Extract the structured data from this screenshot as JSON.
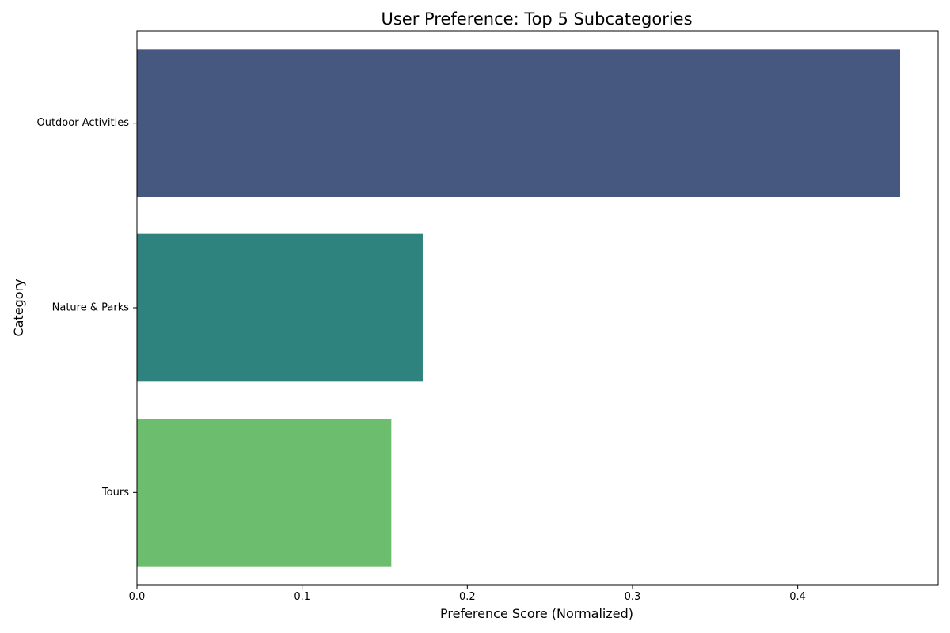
{
  "chart_data": {
    "type": "bar",
    "orientation": "horizontal",
    "title": "User Preference: Top 5 Subcategories",
    "xlabel": "Preference Score (Normalized)",
    "ylabel": "Category",
    "categories": [
      "Outdoor Activities",
      "Nature & Parks",
      "Tours"
    ],
    "values": [
      0.462,
      0.173,
      0.154
    ],
    "colors": [
      "#46587f",
      "#2e837e",
      "#6cbd6d"
    ],
    "xlim": [
      0,
      0.485
    ],
    "xticks": [
      0.0,
      0.1,
      0.2,
      0.3,
      0.4
    ],
    "xtick_labels": [
      "0.0",
      "0.1",
      "0.2",
      "0.3",
      "0.4"
    ],
    "grid": false,
    "legend": "none"
  }
}
